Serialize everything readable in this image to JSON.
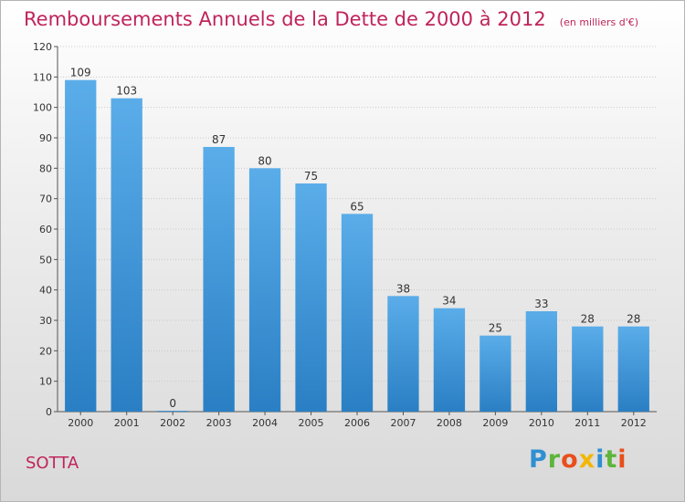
{
  "chart_data": {
    "type": "bar",
    "title": "Remboursements Annuels de la Dette de 2000 à 2012",
    "subtitle": "(en milliers d'€)",
    "categories": [
      "2000",
      "2001",
      "2002",
      "2003",
      "2004",
      "2005",
      "2006",
      "2007",
      "2008",
      "2009",
      "2010",
      "2011",
      "2012"
    ],
    "values": [
      109,
      103,
      0,
      87,
      80,
      75,
      65,
      38,
      34,
      25,
      33,
      28,
      28
    ],
    "ylim": [
      0,
      120
    ],
    "yticks": [
      0,
      10,
      20,
      30,
      40,
      50,
      60,
      70,
      80,
      90,
      100,
      110,
      120
    ],
    "grid": true,
    "bar_color": "#3b92d8"
  },
  "footer": {
    "commune": "SOTTA",
    "brand": "Proxiti"
  }
}
